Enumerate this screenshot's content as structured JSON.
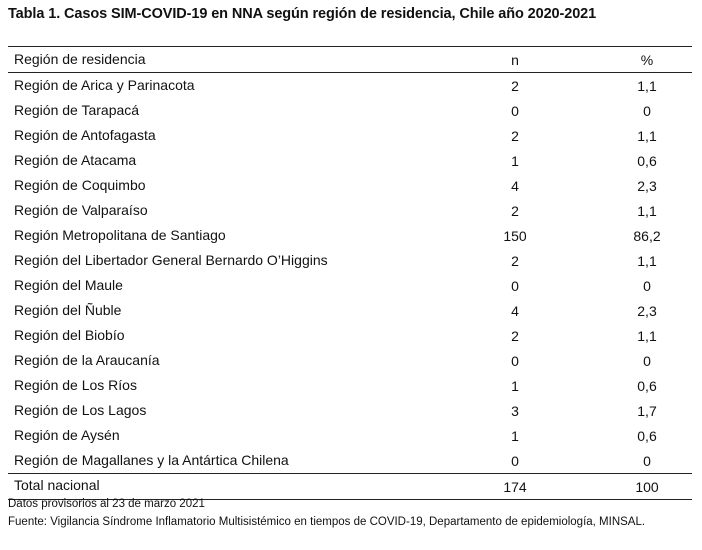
{
  "title": "Tabla 1. Casos SIM-COVID-19 en NNA según región de residencia, Chile año 2020-2021",
  "table": {
    "headers": {
      "region": "Región de residencia",
      "n": "n",
      "pct": "%"
    },
    "rows": [
      {
        "region": "Región de Arica y Parinacota",
        "n": "2",
        "pct": "1,1"
      },
      {
        "region": "Región de Tarapacá",
        "n": "0",
        "pct": "0"
      },
      {
        "region": "Región de Antofagasta",
        "n": "2",
        "pct": "1,1"
      },
      {
        "region": "Región de Atacama",
        "n": "1",
        "pct": "0,6"
      },
      {
        "region": "Región de Coquimbo",
        "n": "4",
        "pct": "2,3"
      },
      {
        "region": "Región de Valparaíso",
        "n": "2",
        "pct": "1,1"
      },
      {
        "region": "Región Metropolitana de Santiago",
        "n": "150",
        "pct": "86,2"
      },
      {
        "region": "Región del Libertador General Bernardo O’Higgins",
        "n": "2",
        "pct": "1,1"
      },
      {
        "region": "Región del Maule",
        "n": "0",
        "pct": "0"
      },
      {
        "region": "Región del Ñuble",
        "n": "4",
        "pct": "2,3"
      },
      {
        "region": "Región del Biobío",
        "n": "2",
        "pct": "1,1"
      },
      {
        "region": "Región de la Araucanía",
        "n": "0",
        "pct": "0"
      },
      {
        "region": "Región de Los Ríos",
        "n": "1",
        "pct": "0,6"
      },
      {
        "region": "Región de Los Lagos",
        "n": "3",
        "pct": "1,7"
      },
      {
        "region": "Región de Aysén",
        "n": "1",
        "pct": "0,6"
      },
      {
        "region": "Región de Magallanes y la Antártica Chilena",
        "n": "0",
        "pct": "0"
      }
    ],
    "total": {
      "region": "Total nacional",
      "n": "174",
      "pct": "100"
    }
  },
  "note": "Datos provisorios al 23 de marzo 2021",
  "source": "Fuente: Vigilancia Síndrome Inflamatorio Multisistémico en tiempos de COVID-19, Departamento de epidemiología, MINSAL."
}
